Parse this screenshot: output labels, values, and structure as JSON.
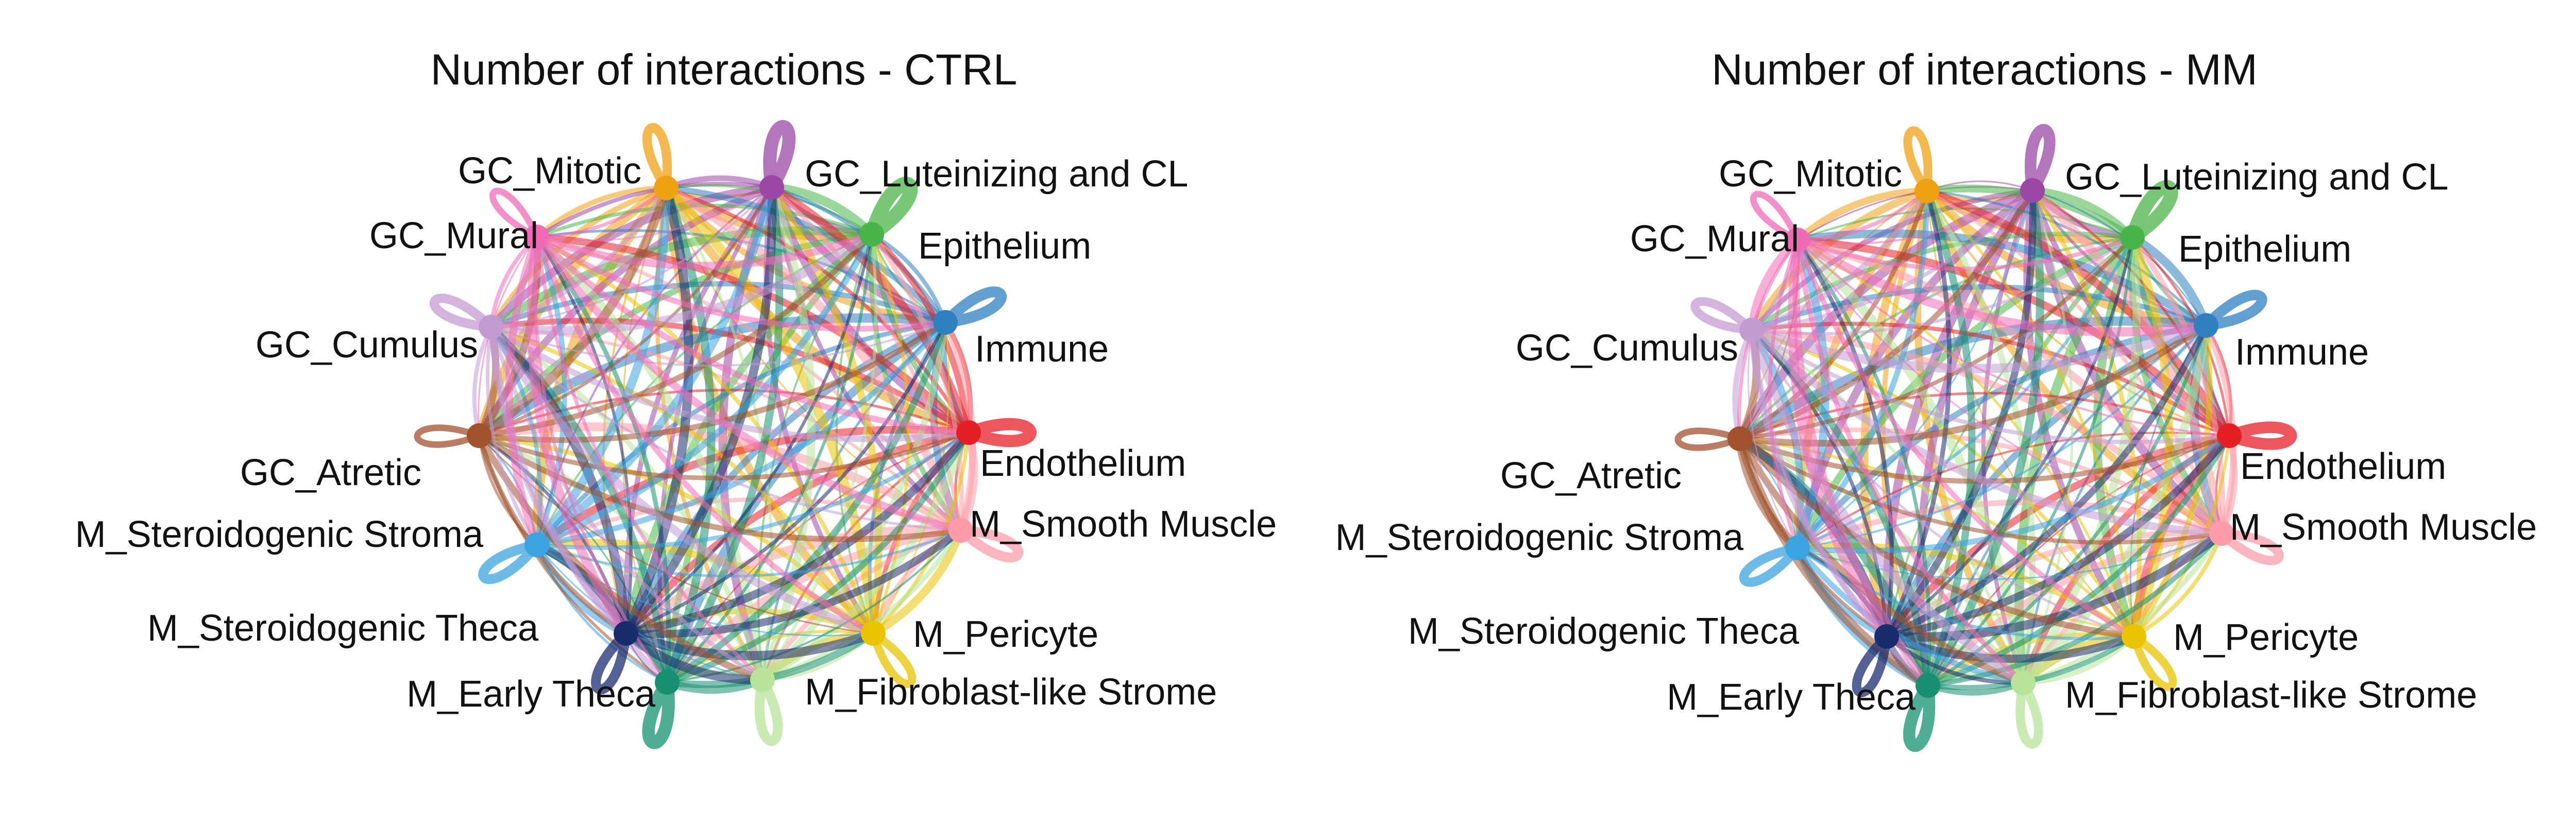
{
  "colors": {
    "GC_Mitotic": "#F0A113",
    "GC_Luteinizing and CL": "#9A47A6",
    "Epithelium": "#49B449",
    "Immune": "#2F7FC1",
    "Endothelium": "#E41F26",
    "M_Smooth Muscle": "#FF9CA8",
    "M_Pericyte": "#E8C300",
    "M_Fibroblast-like Strome": "#B7E39A",
    "M_Early Theca": "#16906F",
    "M_Steroidogenic Theca": "#1B2C6E",
    "M_Steroidogenic Stroma": "#3AA3E0",
    "GC_Atretic": "#A0522D",
    "GC_Cumulus": "#C39BD3",
    "GC_Mural": "#F06BB7"
  },
  "panels": [
    {
      "id": "ctrl",
      "title": "Number of interactions - CTRL",
      "nodes": [
        {
          "name": "GC_Mitotic",
          "label": "GC_Mitotic",
          "loop": 0.55
        },
        {
          "name": "GC_Luteinizing and CL",
          "label": "GC_Luteinizing and CL",
          "loop": 0.9
        },
        {
          "name": "Epithelium",
          "label": "Epithelium",
          "loop": 1.0
        },
        {
          "name": "Immune",
          "label": "Immune",
          "loop": 0.7
        },
        {
          "name": "Endothelium",
          "label": "Endothelium",
          "loop": 0.8
        },
        {
          "name": "M_Smooth Muscle",
          "label": "M_Smooth Muscle",
          "loop": 0.6
        },
        {
          "name": "M_Pericyte",
          "label": "M_Pericyte",
          "loop": 0.45
        },
        {
          "name": "M_Fibroblast-like Strome",
          "label": "M_Fibroblast-like Strome",
          "loop": 0.6
        },
        {
          "name": "M_Early Theca",
          "label": "M_Early Theca",
          "loop": 0.85
        },
        {
          "name": "M_Steroidogenic Theca",
          "label": "M_Steroidogenic Theca",
          "loop": 0.6
        },
        {
          "name": "M_Steroidogenic Stroma",
          "label": "M_Steroidogenic Stroma",
          "loop": 0.6
        },
        {
          "name": "GC_Atretic",
          "label": "GC_Atretic",
          "loop": 0.3
        },
        {
          "name": "GC_Cumulus",
          "label": "GC_Cumulus",
          "loop": 0.55
        },
        {
          "name": "GC_Mural",
          "label": "GC_Mural",
          "loop": 0.3
        }
      ]
    },
    {
      "id": "mm",
      "title": "Number of interactions - MM",
      "nodes": [
        {
          "name": "GC_Mitotic",
          "label": "GC_Mitotic",
          "loop": 0.5
        },
        {
          "name": "GC_Luteinizing and CL",
          "label": "GC_Luteinizing and CL",
          "loop": 0.75
        },
        {
          "name": "Epithelium",
          "label": "Epithelium",
          "loop": 0.95
        },
        {
          "name": "Immune",
          "label": "Immune",
          "loop": 0.65
        },
        {
          "name": "Endothelium",
          "label": "Endothelium",
          "loop": 0.75
        },
        {
          "name": "M_Smooth Muscle",
          "label": "M_Smooth Muscle",
          "loop": 0.55
        },
        {
          "name": "M_Pericyte",
          "label": "M_Pericyte",
          "loop": 0.45
        },
        {
          "name": "M_Fibroblast-like Strome",
          "label": "M_Fibroblast-like Strome",
          "loop": 0.55
        },
        {
          "name": "M_Early Theca",
          "label": "M_Early Theca",
          "loop": 0.8
        },
        {
          "name": "M_Steroidogenic Theca",
          "label": "M_Steroidogenic Theca",
          "loop": 0.55
        },
        {
          "name": "M_Steroidogenic Stroma",
          "label": "M_Steroidogenic Stroma",
          "loop": 0.55
        },
        {
          "name": "GC_Atretic",
          "label": "GC_Atretic",
          "loop": 0.3
        },
        {
          "name": "GC_Cumulus",
          "label": "GC_Cumulus",
          "loop": 0.5
        },
        {
          "name": "GC_Mural",
          "label": "GC_Mural",
          "loop": 0.3
        }
      ]
    }
  ]
}
